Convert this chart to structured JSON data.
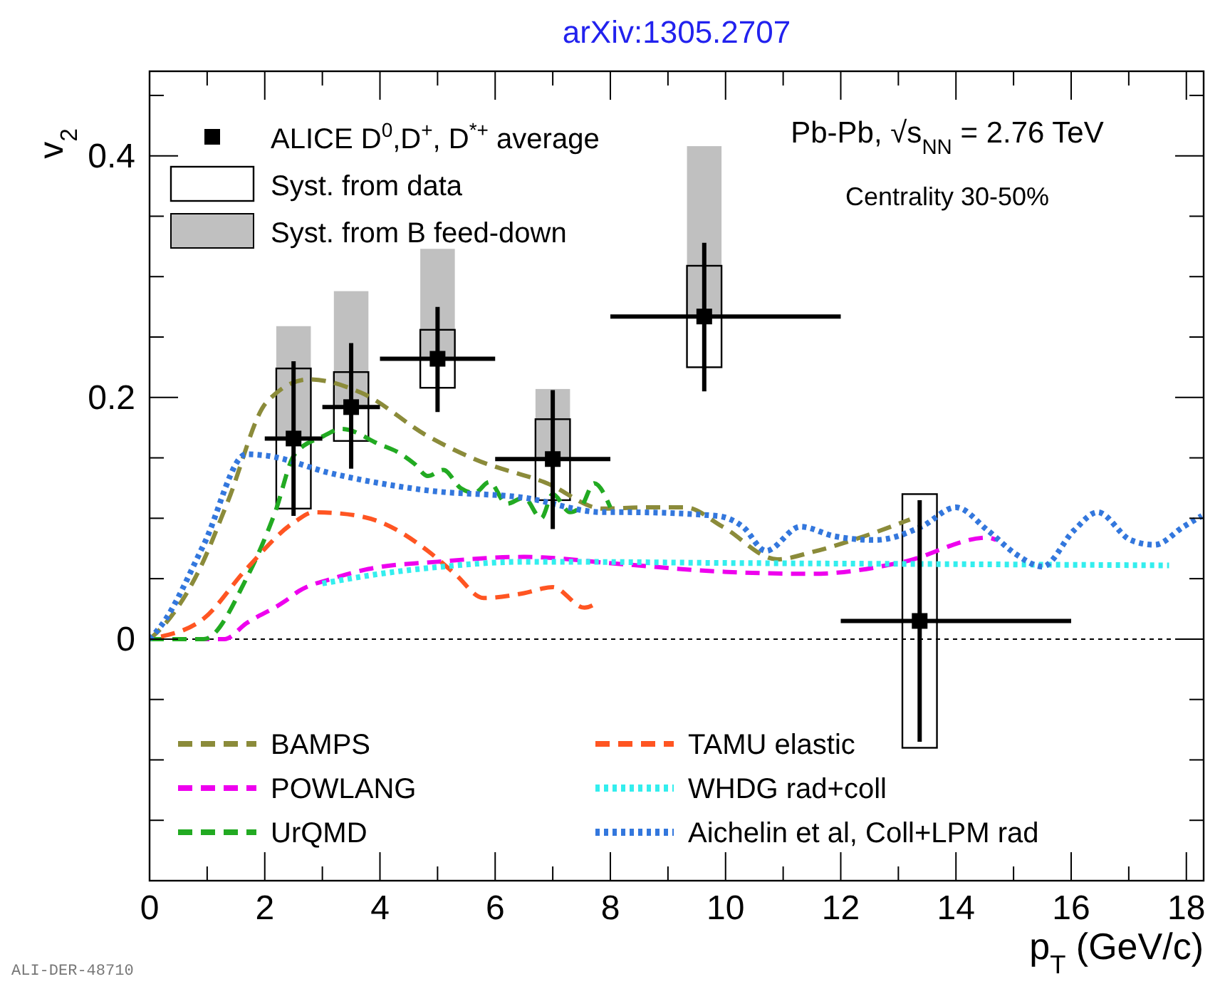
{
  "chart_data": {
    "type": "scatter",
    "title": "arXiv:1305.2707",
    "xlabel": "p$_{T}$ (GeV/c)",
    "ylabel": "v$_{2}$",
    "annotations": [
      "Pb-Pb, √s$_{NN}$ = 2.76 TeV",
      "Centrality 30-50%",
      "ALI-DER-48710"
    ],
    "xlim": [
      0,
      18.3
    ],
    "ylim": [
      -0.2,
      0.47
    ],
    "xticks": [
      0,
      {
        "value": 1,
        "label": null
      },
      2,
      {
        "value": 3,
        "label": null
      },
      4,
      {
        "value": 5,
        "label": null
      },
      6,
      {
        "value": 7,
        "label": null
      },
      8,
      {
        "value": 9,
        "label": null
      },
      10,
      {
        "value": 11,
        "label": null
      },
      12,
      {
        "value": 13,
        "label": null
      },
      14,
      {
        "value": 15,
        "label": null
      },
      16,
      {
        "value": 17,
        "label": null
      },
      18
    ],
    "yticks": [
      {
        "value": -0.15,
        "label": null
      },
      {
        "value": -0.1,
        "label": null
      },
      {
        "value": -0.05,
        "label": null
      },
      0,
      {
        "value": 0.05,
        "label": null
      },
      {
        "value": 0.1,
        "label": null
      },
      {
        "value": 0.15,
        "label": null
      },
      0.2,
      {
        "value": 0.25,
        "label": null
      },
      {
        "value": 0.3,
        "label": null
      },
      {
        "value": 0.35,
        "label": null
      },
      0.4,
      {
        "value": 0.45,
        "label": null
      }
    ],
    "grid": false,
    "legend": "left",
    "ref_lines": [
      {
        "axis": "y",
        "value": 0,
        "label": null,
        "color": "#000000",
        "line_style": "dotted"
      }
    ],
    "series": [
      {
        "type": "bar",
        "name": "Syst. from B feed-down",
        "color": "#c0c0c0",
        "x": [
          2.5,
          3.5,
          5,
          7,
          9.63
        ],
        "base": [
          0.166,
          0.192,
          0.232,
          0.149,
          0.267
        ],
        "values": [
          0.093,
          0.096,
          0.091,
          0.058,
          0.141
        ]
      },
      {
        "type": "bar",
        "name": "Syst. from data",
        "color": "#000000",
        "x": [
          2.5,
          3.5,
          5,
          7,
          9.63,
          13.37
        ],
        "base": [
          0.108,
          0.164,
          0.208,
          0.115,
          0.225,
          -0.09
        ],
        "values": [
          0.116,
          0.057,
          0.048,
          0.067,
          0.084,
          0.21
        ]
      },
      {
        "type": "line",
        "name": "BAMPS",
        "color": "#8b8b3a",
        "line_style": "dashed",
        "x": [
          0,
          0.12,
          0.87,
          1.36,
          2.03,
          2.77,
          3.67,
          4.83,
          5.64,
          6.9,
          7.87,
          8.6,
          9.3,
          9.95,
          10.9,
          11.5,
          12.4,
          13.2
        ],
        "values": [
          0,
          0.005,
          0.058,
          0.114,
          0.196,
          0.215,
          0.204,
          0.168,
          0.149,
          0.129,
          0.108,
          0.109,
          0.109,
          0.093,
          0.066,
          0.072,
          0.085,
          0.099
        ]
      },
      {
        "type": "line",
        "name": "POWLANG",
        "color": "#ee00ee",
        "line_style": "dashed",
        "x": [
          0,
          1.3,
          1.68,
          2.34,
          2.6,
          3.17,
          3.8,
          5.0,
          6.5,
          8.2,
          9.85,
          11.5,
          13.1,
          14.55,
          14.7
        ],
        "values": [
          0,
          0,
          0.013,
          0.031,
          0.04,
          0.05,
          0.058,
          0.064,
          0.068,
          0.062,
          0.056,
          0.054,
          0.064,
          0.084,
          0.082
        ]
      },
      {
        "type": "line",
        "name": "UrQMD",
        "color": "#22aa22",
        "line_style": "dashed",
        "x": [
          0,
          0.94,
          1.68,
          2.18,
          2.52,
          3.02,
          3.34,
          4.0,
          4.3,
          4.6,
          4.83,
          5.1,
          5.4,
          5.64,
          5.9,
          6.2,
          6.5,
          6.8,
          7.0,
          7.3,
          7.5,
          7.72,
          8.0
        ],
        "values": [
          0,
          0,
          0.05,
          0.105,
          0.153,
          0.168,
          0.174,
          0.161,
          0.155,
          0.145,
          0.135,
          0.14,
          0.125,
          0.121,
          0.13,
          0.112,
          0.117,
          0.1,
          0.12,
          0.105,
          0.11,
          0.129,
          0.109
        ]
      },
      {
        "type": "line",
        "name": "TAMU elastic",
        "color": "#ff5522",
        "line_style": "dashed",
        "x": [
          0.2,
          0.94,
          1.68,
          2.52,
          2.85,
          3.3,
          4.0,
          4.83,
          5.3,
          5.8,
          6.5,
          7.0,
          7.55,
          7.8
        ],
        "values": [
          0.002,
          0.017,
          0.058,
          0.097,
          0.105,
          0.104,
          0.097,
          0.073,
          0.054,
          0.034,
          0.038,
          0.043,
          0.026,
          0.031
        ]
      },
      {
        "type": "line",
        "name": "WHDG rad+coll",
        "color": "#33eeee",
        "line_style": "dotted",
        "x": [
          3.0,
          4.0,
          5.1,
          6.5,
          7.0,
          10.0,
          14.0,
          17.7
        ],
        "values": [
          0.046,
          0.054,
          0.06,
          0.064,
          0.064,
          0.063,
          0.062,
          0.061
        ]
      },
      {
        "type": "line",
        "name": "Aichelin et al, Coll+LPM rad",
        "color": "#3377dd",
        "line_style": "dotted",
        "x": [
          0,
          0.2,
          0.94,
          1.68,
          2.0,
          3.17,
          4.83,
          6.5,
          7.87,
          8.3,
          9.85,
          10.3,
          10.7,
          11.3,
          11.9,
          12.6,
          13.4,
          14.0,
          14.55,
          15.05,
          15.5,
          16.05,
          16.46,
          17.03,
          17.45,
          17.95,
          18.27
        ],
        "values": [
          0,
          0.011,
          0.078,
          0.153,
          0.152,
          0.137,
          0.123,
          0.117,
          0.105,
          0.105,
          0.102,
          0.093,
          0.073,
          0.093,
          0.085,
          0.082,
          0.093,
          0.109,
          0.09,
          0.07,
          0.06,
          0.09,
          0.105,
          0.082,
          0.078,
          0.093,
          0.102
        ]
      },
      {
        "name": "ALICE D$^{0}$,D$^{+}$, D$^{*+}$ average",
        "color": "#000000",
        "marker": "square",
        "x": [
          2.5,
          3.5,
          5,
          7,
          9.63,
          13.37
        ],
        "values": [
          0.166,
          0.192,
          0.232,
          0.149,
          0.267,
          0.015
        ],
        "errors": [
          [
            0.102,
            0.23
          ],
          [
            0.141,
            0.245
          ],
          [
            0.188,
            0.275
          ],
          [
            0.091,
            0.206
          ],
          [
            0.205,
            0.328
          ],
          [
            -0.085,
            0.115
          ]
        ],
        "xerrors": [
          [
            2,
            3
          ],
          [
            3,
            4
          ],
          [
            4,
            6
          ],
          [
            6,
            8
          ],
          [
            8,
            12
          ],
          [
            12,
            16
          ]
        ]
      }
    ]
  }
}
